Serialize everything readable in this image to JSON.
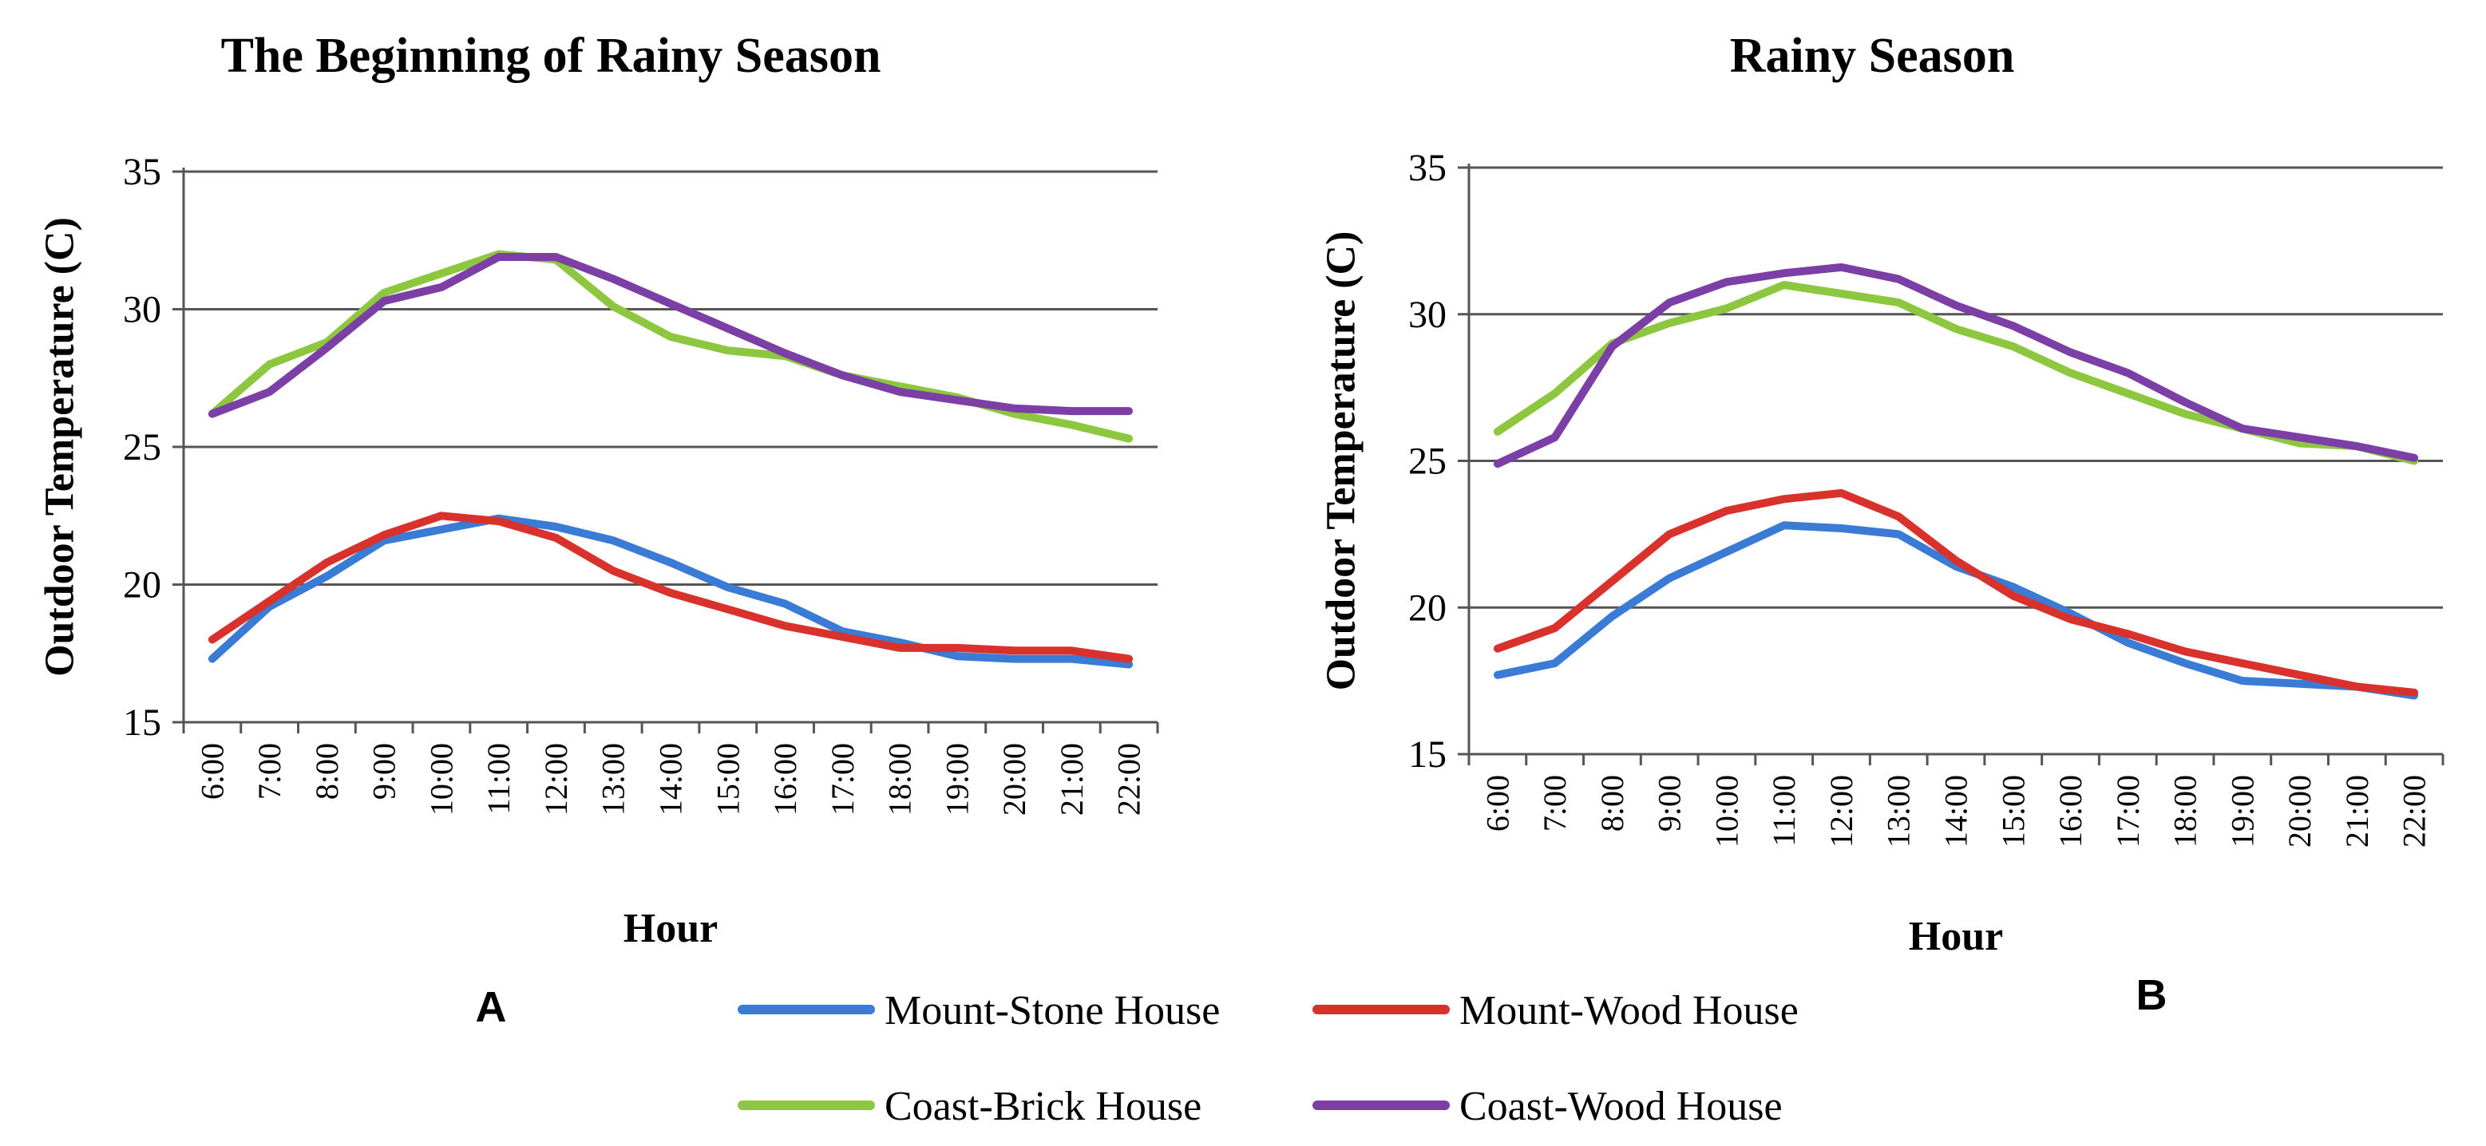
{
  "chart_data": [
    {
      "type": "line",
      "panel_label": "A",
      "title": "The Beginning of Rainy Season",
      "xlabel": "Hour",
      "ylabel": "Outdoor Temperature (C)",
      "ylim": [
        15,
        35
      ],
      "yticks": [
        "15",
        "20",
        "25",
        "30",
        "35"
      ],
      "grid": "horizontal",
      "x": [
        "6:00",
        "7:00",
        "8:00",
        "9:00",
        "10:00",
        "11:00",
        "12:00",
        "13:00",
        "14:00",
        "15:00",
        "16:00",
        "17:00",
        "18:00",
        "19:00",
        "20:00",
        "21:00",
        "22:00"
      ],
      "series": [
        {
          "name": "Mount-Stone House",
          "color": "#3a7bd5",
          "values": [
            17.3,
            19.2,
            20.3,
            21.6,
            22.0,
            22.4,
            22.1,
            21.6,
            20.8,
            19.9,
            19.3,
            18.3,
            17.9,
            17.4,
            17.3,
            17.3,
            17.1
          ]
        },
        {
          "name": "Mount-Wood House",
          "color": "#d9312b",
          "values": [
            18.0,
            19.4,
            20.8,
            21.8,
            22.5,
            22.3,
            21.7,
            20.5,
            19.7,
            19.1,
            18.5,
            18.1,
            17.7,
            17.7,
            17.6,
            17.6,
            17.3
          ]
        },
        {
          "name": "Coast-Brick House",
          "color": "#8dc63f",
          "values": [
            26.2,
            28.0,
            28.8,
            30.6,
            31.3,
            32.0,
            31.8,
            30.1,
            29.0,
            28.5,
            28.3,
            27.6,
            27.2,
            26.8,
            26.2,
            25.8,
            25.3
          ]
        },
        {
          "name": "Coast-Wood House",
          "color": "#7b3fa6",
          "values": [
            26.2,
            27.0,
            28.6,
            30.3,
            30.8,
            31.9,
            31.9,
            31.1,
            30.2,
            29.3,
            28.4,
            27.6,
            27.0,
            26.7,
            26.4,
            26.3,
            26.3
          ]
        }
      ]
    },
    {
      "type": "line",
      "panel_label": "B",
      "title": "Rainy Season",
      "xlabel": "Hour",
      "ylabel": "Outdoor Temperature (C)",
      "ylim": [
        15,
        35
      ],
      "yticks": [
        "15",
        "20",
        "25",
        "30",
        "35"
      ],
      "grid": "horizontal",
      "x": [
        "6:00",
        "7:00",
        "8:00",
        "9:00",
        "10:00",
        "11:00",
        "12:00",
        "13:00",
        "14:00",
        "15:00",
        "16:00",
        "17:00",
        "18:00",
        "19:00",
        "20:00",
        "21:00",
        "22:00"
      ],
      "series": [
        {
          "name": "Mount-Stone House",
          "color": "#3a7bd5",
          "values": [
            17.7,
            18.1,
            19.7,
            21.0,
            21.9,
            22.8,
            22.7,
            22.5,
            21.4,
            20.7,
            19.8,
            18.8,
            18.1,
            17.5,
            17.4,
            17.3,
            17.0
          ]
        },
        {
          "name": "Mount-Wood House",
          "color": "#d9312b",
          "values": [
            18.6,
            19.3,
            20.9,
            22.5,
            23.3,
            23.7,
            23.9,
            23.1,
            21.6,
            20.4,
            19.6,
            19.1,
            18.5,
            18.1,
            17.7,
            17.3,
            17.1
          ]
        },
        {
          "name": "Coast-Brick House",
          "color": "#8dc63f",
          "values": [
            26.0,
            27.3,
            29.0,
            29.7,
            30.2,
            31.0,
            30.7,
            30.4,
            29.5,
            28.9,
            28.0,
            27.3,
            26.6,
            26.1,
            25.6,
            25.5,
            25.0
          ]
        },
        {
          "name": "Coast-Wood House",
          "color": "#7b3fa6",
          "values": [
            24.9,
            25.8,
            28.9,
            30.4,
            31.1,
            31.4,
            31.6,
            31.2,
            30.3,
            29.6,
            28.7,
            28.0,
            27.0,
            26.1,
            25.8,
            25.5,
            25.1
          ]
        }
      ]
    }
  ],
  "legend": [
    {
      "name": "Mount-Stone House",
      "color": "#3a7bd5"
    },
    {
      "name": "Mount-Wood House",
      "color": "#d9312b"
    },
    {
      "name": "Coast-Brick House",
      "color": "#8dc63f"
    },
    {
      "name": "Coast-Wood House",
      "color": "#7b3fa6"
    }
  ]
}
